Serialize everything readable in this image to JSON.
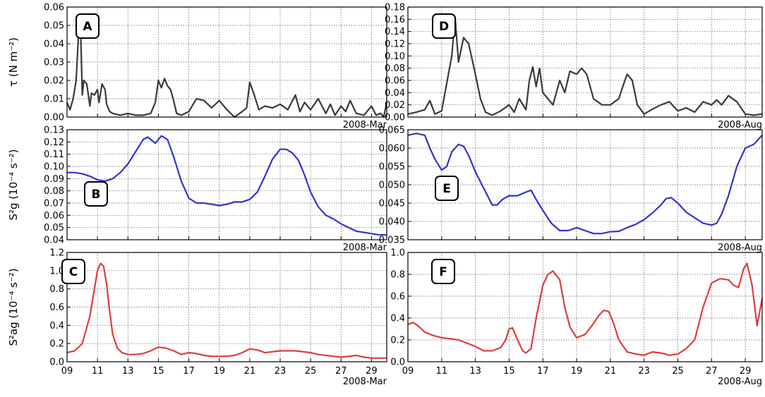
{
  "chart_data": [
    {
      "panel_label": "A",
      "type": "line",
      "ylabel": "τ (N m⁻²)",
      "month_label": "2008-Mar",
      "color": "#3a3a3a",
      "yticks": [
        "0.00",
        "0.01",
        "0.02",
        "0.03",
        "0.04",
        "0.05",
        "0.06"
      ],
      "ylim": [
        0,
        0.06
      ],
      "xticks": [],
      "xlim": [
        9,
        30
      ],
      "grid": true,
      "series": [
        {
          "x": [
            9.0,
            9.2,
            9.4,
            9.6,
            9.8,
            9.9,
            10.0,
            10.1,
            10.3,
            10.5,
            10.6,
            10.8,
            11.0,
            11.1,
            11.3,
            11.5,
            11.6,
            11.8,
            12.0,
            12.5,
            13.0,
            13.5,
            14.0,
            14.5,
            14.8,
            15.0,
            15.2,
            15.4,
            15.6,
            15.8,
            16.0,
            16.2,
            16.5,
            17.0,
            17.5,
            18.0,
            18.5,
            19.0,
            19.5,
            20.0,
            20.5,
            20.8,
            21.0,
            21.3,
            21.6,
            22.0,
            22.5,
            23.0,
            23.5,
            24.0,
            24.3,
            24.6,
            25.0,
            25.5,
            26.0,
            26.3,
            26.6,
            27.0,
            27.3,
            27.6,
            28.0,
            28.5,
            29.0,
            29.3,
            29.6,
            29.8,
            30.0
          ],
          "y": [
            0.008,
            0.004,
            0.01,
            0.02,
            0.053,
            0.045,
            0.012,
            0.02,
            0.018,
            0.006,
            0.013,
            0.012,
            0.015,
            0.008,
            0.018,
            0.015,
            0.007,
            0.003,
            0.002,
            0.001,
            0.002,
            0.001,
            0.001,
            0.002,
            0.008,
            0.02,
            0.016,
            0.021,
            0.017,
            0.015,
            0.009,
            0.002,
            0.001,
            0.003,
            0.01,
            0.009,
            0.005,
            0.009,
            0.004,
            0.0,
            0.003,
            0.005,
            0.019,
            0.012,
            0.004,
            0.006,
            0.005,
            0.007,
            0.004,
            0.012,
            0.003,
            0.008,
            0.004,
            0.01,
            0.002,
            0.007,
            0.001,
            0.006,
            0.003,
            0.009,
            0.002,
            0.001,
            0.006,
            0.001,
            0.002,
            0.0,
            0.008
          ]
        }
      ]
    },
    {
      "panel_label": "B",
      "type": "line",
      "ylabel": "S²g (10⁻⁴ s⁻²)",
      "month_label": "2008-Mar",
      "color": "#3333cc",
      "yticks": [
        "0.04",
        "0.05",
        "0.06",
        "0.07",
        "0.08",
        "0.09",
        "0.10",
        "0.11",
        "0.12",
        "0.13"
      ],
      "ylim": [
        0.04,
        0.13
      ],
      "xticks": [],
      "xlim": [
        9,
        30
      ],
      "grid": true,
      "series": [
        {
          "x": [
            9.0,
            9.5,
            10.0,
            10.5,
            11.0,
            11.5,
            12.0,
            12.5,
            13.0,
            13.5,
            14.0,
            14.3,
            14.8,
            15.2,
            15.6,
            16.0,
            16.5,
            17.0,
            17.5,
            18.0,
            18.5,
            19.0,
            19.5,
            20.0,
            20.5,
            21.0,
            21.5,
            22.0,
            22.5,
            23.0,
            23.4,
            23.8,
            24.2,
            24.6,
            25.0,
            25.5,
            26.0,
            26.5,
            27.0,
            27.5,
            28.0,
            28.5,
            29.0,
            29.5,
            30.0
          ],
          "y": [
            0.095,
            0.095,
            0.094,
            0.092,
            0.089,
            0.088,
            0.09,
            0.095,
            0.102,
            0.112,
            0.122,
            0.124,
            0.119,
            0.125,
            0.122,
            0.108,
            0.088,
            0.074,
            0.07,
            0.07,
            0.069,
            0.068,
            0.069,
            0.071,
            0.071,
            0.073,
            0.079,
            0.092,
            0.106,
            0.114,
            0.114,
            0.111,
            0.105,
            0.093,
            0.079,
            0.067,
            0.06,
            0.057,
            0.053,
            0.05,
            0.047,
            0.046,
            0.045,
            0.044,
            0.044
          ]
        }
      ]
    },
    {
      "panel_label": "C",
      "type": "line",
      "ylabel": "S²ag (10⁻⁴ s⁻²)",
      "month_label": "2008-Mar",
      "color": "#e03c3c",
      "yticks": [
        "0.0",
        "0.2",
        "0.4",
        "0.6",
        "0.8",
        "1.0",
        "1.2"
      ],
      "ylim": [
        0,
        1.2
      ],
      "xticks": [
        "09",
        "11",
        "13",
        "15",
        "17",
        "19",
        "21",
        "23",
        "25",
        "27",
        "29"
      ],
      "xlim": [
        9,
        30
      ],
      "grid": true,
      "series": [
        {
          "x": [
            9.0,
            9.5,
            10.0,
            10.5,
            10.8,
            11.0,
            11.2,
            11.4,
            11.6,
            11.8,
            12.0,
            12.3,
            12.6,
            13.0,
            13.5,
            14.0,
            14.5,
            15.0,
            15.5,
            16.0,
            16.5,
            17.0,
            17.5,
            18.0,
            18.5,
            19.0,
            19.5,
            20.0,
            20.5,
            21.0,
            21.5,
            22.0,
            22.5,
            23.0,
            23.5,
            24.0,
            24.5,
            25.0,
            25.5,
            26.0,
            26.5,
            27.0,
            27.5,
            28.0,
            28.5,
            29.0,
            29.5,
            30.0
          ],
          "y": [
            0.1,
            0.12,
            0.2,
            0.5,
            0.8,
            1.0,
            1.08,
            1.05,
            0.85,
            0.55,
            0.3,
            0.15,
            0.1,
            0.08,
            0.08,
            0.09,
            0.12,
            0.16,
            0.15,
            0.12,
            0.08,
            0.1,
            0.09,
            0.07,
            0.06,
            0.06,
            0.06,
            0.07,
            0.1,
            0.14,
            0.13,
            0.1,
            0.11,
            0.12,
            0.12,
            0.12,
            0.11,
            0.1,
            0.08,
            0.07,
            0.06,
            0.05,
            0.06,
            0.07,
            0.05,
            0.04,
            0.04,
            0.04
          ]
        }
      ]
    },
    {
      "panel_label": "D",
      "type": "line",
      "ylabel": "",
      "month_label": "2008-Aug",
      "color": "#3a3a3a",
      "yticks": [
        "0.00",
        "0.02",
        "0.04",
        "0.06",
        "0.08",
        "0.10",
        "0.12",
        "0.14",
        "0.16",
        "0.18"
      ],
      "ylim": [
        0,
        0.18
      ],
      "xticks": [],
      "xlim": [
        9,
        30
      ],
      "grid": true,
      "series": [
        {
          "x": [
            9.0,
            9.5,
            10.0,
            10.3,
            10.6,
            11.0,
            11.3,
            11.6,
            11.8,
            12.0,
            12.3,
            12.6,
            13.0,
            13.3,
            13.6,
            14.0,
            14.5,
            15.0,
            15.3,
            15.6,
            16.0,
            16.2,
            16.4,
            16.6,
            16.8,
            17.0,
            17.3,
            17.6,
            18.0,
            18.3,
            18.6,
            19.0,
            19.3,
            19.6,
            20.0,
            20.5,
            21.0,
            21.5,
            21.8,
            22.0,
            22.3,
            22.6,
            23.0,
            23.5,
            24.0,
            24.5,
            25.0,
            25.5,
            26.0,
            26.5,
            27.0,
            27.3,
            27.6,
            28.0,
            28.5,
            29.0,
            29.5,
            30.0
          ],
          "y": [
            0.005,
            0.008,
            0.012,
            0.027,
            0.005,
            0.01,
            0.055,
            0.1,
            0.163,
            0.09,
            0.13,
            0.12,
            0.07,
            0.03,
            0.008,
            0.003,
            0.01,
            0.02,
            0.008,
            0.03,
            0.012,
            0.06,
            0.082,
            0.05,
            0.08,
            0.04,
            0.03,
            0.02,
            0.06,
            0.04,
            0.075,
            0.07,
            0.08,
            0.07,
            0.03,
            0.02,
            0.02,
            0.03,
            0.055,
            0.07,
            0.06,
            0.02,
            0.005,
            0.013,
            0.02,
            0.025,
            0.01,
            0.015,
            0.008,
            0.025,
            0.02,
            0.028,
            0.02,
            0.035,
            0.025,
            0.005,
            0.003,
            0.005
          ]
        }
      ]
    },
    {
      "panel_label": "E",
      "type": "line",
      "ylabel": "",
      "month_label": "2008-Aug",
      "color": "#3333cc",
      "yticks": [
        "0.035",
        "0.040",
        "0.045",
        "0.050",
        "0.055",
        "0.060",
        "0.065"
      ],
      "ylim": [
        0.035,
        0.065
      ],
      "xticks": [],
      "xlim": [
        9,
        30
      ],
      "grid": true,
      "series": [
        {
          "x": [
            9.0,
            9.5,
            10.0,
            10.3,
            10.6,
            11.0,
            11.3,
            11.6,
            12.0,
            12.3,
            12.6,
            13.0,
            13.5,
            14.0,
            14.3,
            14.6,
            15.0,
            15.5,
            16.0,
            16.3,
            16.6,
            17.0,
            17.5,
            18.0,
            18.5,
            19.0,
            19.5,
            20.0,
            20.5,
            21.0,
            21.5,
            22.0,
            22.5,
            23.0,
            23.5,
            24.0,
            24.3,
            24.6,
            25.0,
            25.5,
            26.0,
            26.5,
            27.0,
            27.3,
            27.6,
            28.0,
            28.5,
            29.0,
            29.5,
            30.0
          ],
          "y": [
            0.0635,
            0.064,
            0.0635,
            0.06,
            0.057,
            0.054,
            0.055,
            0.059,
            0.061,
            0.0605,
            0.058,
            0.0535,
            0.049,
            0.0445,
            0.0445,
            0.046,
            0.047,
            0.047,
            0.048,
            0.0485,
            0.046,
            0.043,
            0.0395,
            0.0375,
            0.0375,
            0.0383,
            0.0375,
            0.0367,
            0.0367,
            0.0372,
            0.0373,
            0.0383,
            0.0392,
            0.0405,
            0.0423,
            0.0445,
            0.0462,
            0.0465,
            0.045,
            0.0425,
            0.041,
            0.0395,
            0.039,
            0.0395,
            0.042,
            0.047,
            0.055,
            0.06,
            0.061,
            0.0635
          ]
        }
      ]
    },
    {
      "panel_label": "F",
      "type": "line",
      "ylabel": "",
      "month_label": "2008-Aug",
      "color": "#e03c3c",
      "yticks": [
        "0.0",
        "0.2",
        "0.4",
        "0.6",
        "0.8",
        "1.0"
      ],
      "ylim": [
        0,
        1.0
      ],
      "xticks": [
        "09",
        "11",
        "13",
        "15",
        "17",
        "19",
        "21",
        "23",
        "25",
        "27",
        "29"
      ],
      "xlim": [
        9,
        30
      ],
      "grid": true,
      "series": [
        {
          "x": [
            9.0,
            9.3,
            9.6,
            10.0,
            10.5,
            11.0,
            11.5,
            12.0,
            12.5,
            13.0,
            13.5,
            14.0,
            14.5,
            14.8,
            15.0,
            15.2,
            15.5,
            15.8,
            16.0,
            16.3,
            16.6,
            17.0,
            17.3,
            17.6,
            18.0,
            18.3,
            18.6,
            19.0,
            19.5,
            20.0,
            20.3,
            20.6,
            20.9,
            21.2,
            21.5,
            22.0,
            22.5,
            23.0,
            23.5,
            24.0,
            24.5,
            25.0,
            25.5,
            26.0,
            26.5,
            27.0,
            27.5,
            28.0,
            28.3,
            28.6,
            28.9,
            29.1,
            29.4,
            29.7,
            30.0
          ],
          "y": [
            0.34,
            0.36,
            0.33,
            0.27,
            0.24,
            0.22,
            0.21,
            0.2,
            0.17,
            0.14,
            0.1,
            0.1,
            0.13,
            0.2,
            0.3,
            0.31,
            0.2,
            0.1,
            0.08,
            0.12,
            0.4,
            0.7,
            0.8,
            0.83,
            0.75,
            0.5,
            0.32,
            0.22,
            0.25,
            0.35,
            0.42,
            0.47,
            0.46,
            0.35,
            0.2,
            0.09,
            0.07,
            0.06,
            0.09,
            0.08,
            0.06,
            0.07,
            0.12,
            0.2,
            0.5,
            0.72,
            0.76,
            0.75,
            0.7,
            0.68,
            0.85,
            0.9,
            0.7,
            0.33,
            0.58
          ]
        }
      ]
    }
  ],
  "x_axis_month": {
    "left": "2008-Mar",
    "right": "2008-Aug"
  }
}
